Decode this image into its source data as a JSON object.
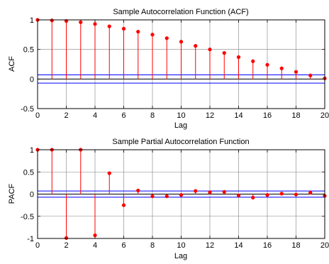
{
  "chart_data": [
    {
      "type": "stem",
      "title": "Sample Autocorrelation Function (ACF)",
      "xlabel": "Lag",
      "ylabel": "ACF",
      "xlim": [
        0,
        20
      ],
      "ylim": [
        -0.5,
        1
      ],
      "xticks": [
        "0",
        "2",
        "4",
        "6",
        "8",
        "10",
        "12",
        "14",
        "16",
        "18",
        "20"
      ],
      "yticks": [
        "-0.5",
        "0",
        "0.5",
        "1"
      ],
      "grid": true,
      "x": [
        0,
        1,
        2,
        3,
        4,
        5,
        6,
        7,
        8,
        9,
        10,
        11,
        12,
        13,
        14,
        15,
        16,
        17,
        18,
        19,
        20
      ],
      "values": [
        1.0,
        0.99,
        0.98,
        0.96,
        0.93,
        0.89,
        0.85,
        0.8,
        0.75,
        0.69,
        0.63,
        0.56,
        0.5,
        0.44,
        0.37,
        0.3,
        0.24,
        0.18,
        0.12,
        0.06,
        0.01
      ],
      "bounds": [
        0.07,
        -0.07
      ],
      "colors": {
        "stem": "#ff0000",
        "bounds": "#0000ff",
        "zero": "#000000",
        "grid": "#808080"
      }
    },
    {
      "type": "stem",
      "title": "Sample Partial Autocorrelation Function",
      "xlabel": "Lag",
      "ylabel": "PACF",
      "xlim": [
        0,
        20
      ],
      "ylim": [
        -1,
        1
      ],
      "xticks": [
        "0",
        "2",
        "4",
        "6",
        "8",
        "10",
        "12",
        "14",
        "16",
        "18",
        "20"
      ],
      "yticks": [
        "-1",
        "-0.5",
        "0",
        "0.5",
        "1"
      ],
      "grid": true,
      "x": [
        0,
        1,
        2,
        3,
        4,
        5,
        6,
        7,
        8,
        9,
        10,
        11,
        12,
        13,
        14,
        15,
        16,
        17,
        18,
        19,
        20
      ],
      "values": [
        1.0,
        1.0,
        -0.99,
        1.0,
        -0.93,
        0.47,
        -0.25,
        0.08,
        -0.05,
        -0.05,
        -0.02,
        0.07,
        0.04,
        0.05,
        -0.03,
        -0.08,
        -0.02,
        0.01,
        -0.01,
        0.03,
        -0.04
      ],
      "bounds": [
        0.07,
        -0.07
      ],
      "colors": {
        "stem": "#ff0000",
        "bounds": "#0000ff",
        "zero": "#000000",
        "grid": "#808080"
      }
    }
  ]
}
